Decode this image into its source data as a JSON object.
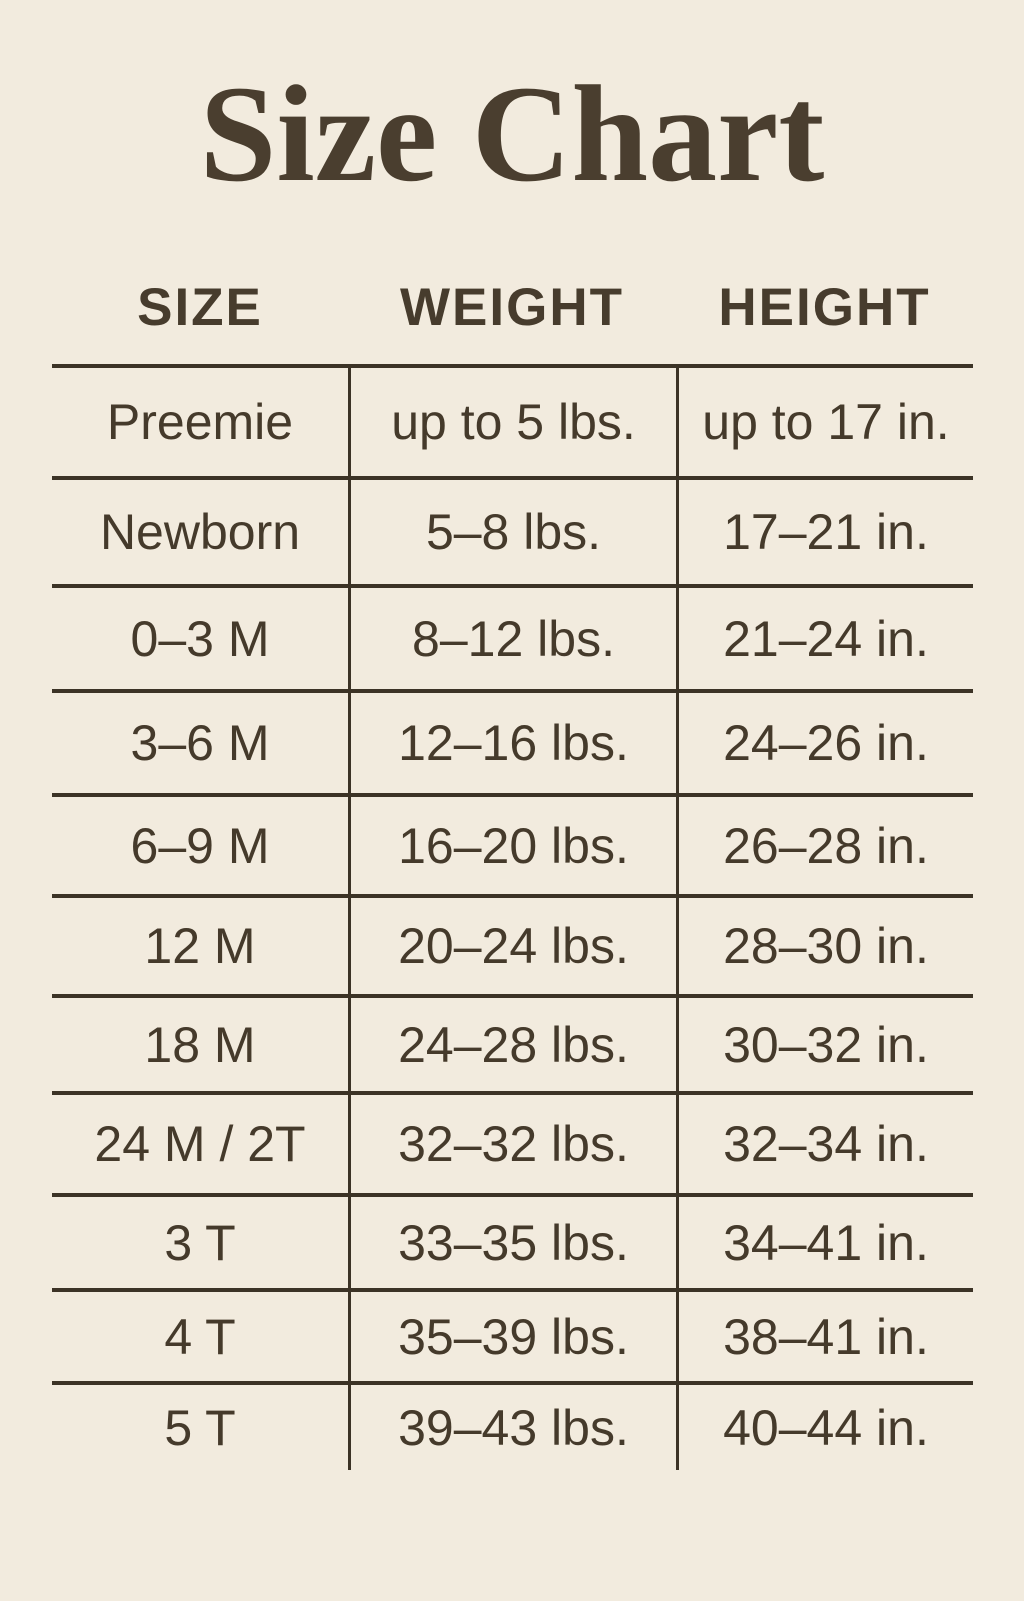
{
  "title": "Size Chart",
  "colors": {
    "background": "#F2EBDE",
    "text": "#453A2B",
    "line": "#3C3326",
    "title": "#4A3E2F"
  },
  "table": {
    "headers": [
      "SIZE",
      "WEIGHT",
      "HEIGHT"
    ],
    "rows": [
      {
        "size": "Preemie",
        "weight": "up to 5 lbs.",
        "height": "up to 17 in."
      },
      {
        "size": "Newborn",
        "weight": "5–8 lbs.",
        "height": "17–21 in."
      },
      {
        "size": "0–3 M",
        "weight": "8–12 lbs.",
        "height": "21–24 in."
      },
      {
        "size": "3–6 M",
        "weight": "12–16 lbs.",
        "height": "24–26 in."
      },
      {
        "size": "6–9 M",
        "weight": "16–20 lbs.",
        "height": "26–28 in."
      },
      {
        "size": "12 M",
        "weight": "20–24 lbs.",
        "height": "28–30 in."
      },
      {
        "size": "18 M",
        "weight": "24–28 lbs.",
        "height": "30–32 in."
      },
      {
        "size": "24 M / 2T",
        "weight": "32–32 lbs.",
        "height": "32–34 in."
      },
      {
        "size": "3 T",
        "weight": "33–35 lbs.",
        "height": "34–41 in."
      },
      {
        "size": "4 T",
        "weight": "35–39 lbs.",
        "height": "38–41 in."
      },
      {
        "size": "5 T",
        "weight": "39–43 lbs.",
        "height": "40–44 in."
      }
    ]
  },
  "chart_data": {
    "type": "table",
    "title": "Size Chart",
    "columns": [
      "SIZE",
      "WEIGHT",
      "HEIGHT"
    ],
    "rows": [
      [
        "Preemie",
        "up to 5 lbs.",
        "up to 17 in."
      ],
      [
        "Newborn",
        "5–8 lbs.",
        "17–21 in."
      ],
      [
        "0–3 M",
        "8–12 lbs.",
        "21–24 in."
      ],
      [
        "3–6 M",
        "12–16 lbs.",
        "24–26 in."
      ],
      [
        "6–9 M",
        "16–20 lbs.",
        "26–28 in."
      ],
      [
        "12 M",
        "20–24 lbs.",
        "28–30 in."
      ],
      [
        "18 M",
        "24–28 lbs.",
        "30–32 in."
      ],
      [
        "24 M / 2T",
        "32–32 lbs.",
        "32–34 in."
      ],
      [
        "3 T",
        "33–35 lbs.",
        "34–41 in."
      ],
      [
        "4 T",
        "35–39 lbs.",
        "38–41 in."
      ],
      [
        "5 T",
        "39–43 lbs.",
        "40–44 in."
      ]
    ],
    "layout": {
      "grid": "horizontal-rules-and-column-separators",
      "legend": "none"
    }
  }
}
